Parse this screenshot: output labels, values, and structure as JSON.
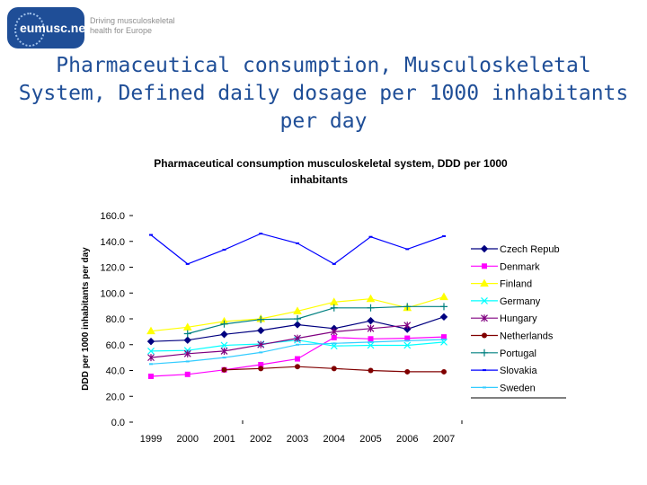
{
  "header": {
    "logo_text": "eumusc.net",
    "tagline_line1": "Driving musculoskeletal",
    "tagline_line2": "health for Europe",
    "slide_title_line1": "Pharmaceutical consumption, Musculoskeletal",
    "slide_title_line2": "System, Defined daily dosage per 1000 inhabitants",
    "slide_title_line3": "per day"
  },
  "chart_data": {
    "type": "line",
    "title_line1": "Pharmaceutical consumption musculoskeletal system, DDD per 1000",
    "title_line2": "inhabitants",
    "xlabel": "",
    "ylabel": "DDD per 1000 inhabitants per day",
    "ylim": [
      0,
      160
    ],
    "yticks": [
      "0.0",
      "20.0",
      "40.0",
      "60.0",
      "80.0",
      "100.0",
      "120.0",
      "140.0",
      "160.0"
    ],
    "x": [
      "1999",
      "2000",
      "2001",
      "2002",
      "2003",
      "2004",
      "2005",
      "2006",
      "2007"
    ],
    "legend_position": "right",
    "series": [
      {
        "name": "Czech Repub",
        "color": "#000080",
        "marker": "diamond",
        "values": [
          62.5,
          63.5,
          68.0,
          71.0,
          75.5,
          72.5,
          78.5,
          72.0,
          81.5
        ]
      },
      {
        "name": "Denmark",
        "color": "#ff00ff",
        "marker": "square",
        "values": [
          35.5,
          37.0,
          40.5,
          44.5,
          49.0,
          65.5,
          64.5,
          65.0,
          66.0
        ]
      },
      {
        "name": "Finland",
        "color": "#ffff00",
        "marker": "triangle",
        "values": [
          70.5,
          73.5,
          78.0,
          80.0,
          86.0,
          93.0,
          95.5,
          88.5,
          97.0
        ]
      },
      {
        "name": "Germany",
        "color": "#00ffff",
        "marker": "x",
        "values": [
          55.0,
          55.5,
          59.5,
          60.5,
          63.5,
          59.0,
          59.5,
          59.5,
          62.0
        ]
      },
      {
        "name": "Hungary",
        "color": "#800080",
        "marker": "star",
        "values": [
          50.0,
          53.0,
          55.0,
          60.0,
          65.0,
          70.0,
          72.5,
          75.0,
          null
        ]
      },
      {
        "name": "Netherlands",
        "color": "#800000",
        "marker": "circle",
        "values": [
          null,
          null,
          40.5,
          41.5,
          43.0,
          41.5,
          40.0,
          39.0,
          39.0
        ]
      },
      {
        "name": "Portugal",
        "color": "#008080",
        "marker": "plus",
        "values": [
          null,
          68.5,
          76.0,
          79.5,
          80.0,
          88.5,
          88.5,
          89.5,
          89.5
        ]
      },
      {
        "name": "Slovakia",
        "color": "#0000ff",
        "marker": "dash",
        "values": [
          145.0,
          122.5,
          133.5,
          146.0,
          138.5,
          122.5,
          143.5,
          134.0,
          144.0
        ]
      },
      {
        "name": "Sweden",
        "color": "#33ccff",
        "marker": "dash",
        "values": [
          45.0,
          47.0,
          50.0,
          54.0,
          60.0,
          61.0,
          62.0,
          63.0,
          64.0
        ]
      }
    ]
  }
}
